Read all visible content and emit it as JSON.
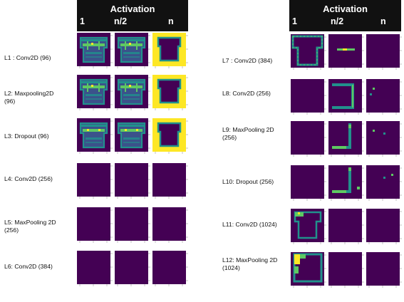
{
  "panels": [
    {
      "header": {
        "title": "Activation",
        "columns": [
          "1",
          "n/2",
          "n"
        ]
      },
      "rows": [
        {
          "label": "L1 : Conv2D (96)",
          "cells": [
            "house_a",
            "house_a",
            "hollow_yellow"
          ]
        },
        {
          "label": "L2: Maxpooling2D\n(96)",
          "cells": [
            "house_a",
            "house_a",
            "hollow_yellow"
          ]
        },
        {
          "label": "L3: Dropout (96)",
          "cells": [
            "house_b",
            "house_b",
            "hollow_yellow"
          ]
        },
        {
          "label": "L4: Conv2D  (256)",
          "cells": [
            "empty",
            "empty",
            "empty"
          ]
        },
        {
          "label": "L5: MaxPooling 2D\n(256)",
          "cells": [
            "empty",
            "empty",
            "empty"
          ]
        },
        {
          "label": "L6: Conv2D (384)",
          "cells": [
            "empty",
            "empty",
            "empty"
          ]
        }
      ]
    },
    {
      "header": {
        "title": "Activation",
        "columns": [
          "1",
          "n/2",
          "n"
        ]
      },
      "rows": [
        {
          "label": "L7 : Conv2D (384)",
          "cells": [
            "outline_house",
            "line_h",
            "empty"
          ]
        },
        {
          "label": "L8: Conv2D (256)",
          "cells": [
            "empty",
            "hook",
            "dots_a"
          ]
        },
        {
          "label": "L9: MaxPooling 2D\n(256)",
          "cells": [
            "empty",
            "bracket",
            "dots_b"
          ]
        },
        {
          "label": "L10: Dropout  (256)",
          "cells": [
            "empty",
            "bracket2",
            "dots_c"
          ]
        },
        {
          "label": "L11: Conv2D (1024)",
          "cells": [
            "outline_house2",
            "empty",
            "empty"
          ]
        },
        {
          "label": "L12: MaxPooling 2D\n(1024)",
          "cells": [
            "square_yellow",
            "empty",
            "empty"
          ]
        }
      ]
    }
  ],
  "colors": {
    "background": "#440154",
    "dark_blue": "#3b528b",
    "teal": "#21918c",
    "green": "#5ec962",
    "yellow": "#fde725",
    "header_bg": "#111111"
  }
}
